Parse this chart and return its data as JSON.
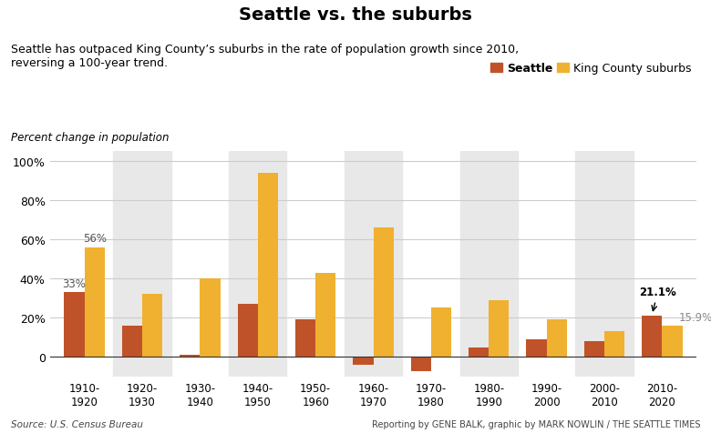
{
  "title": "Seattle vs. the suburbs",
  "subtitle": "Seattle has outpaced King County’s suburbs in the rate of population growth since 2010,\nreversing a 100-year trend.",
  "ylabel": "Percent change in population",
  "source": "Source: U.S. Census Bureau",
  "credit": "Reporting by GENE BALK, graphic by MARK NOWLIN / THE SEATTLE TIMES",
  "categories": [
    "1910-\n1920",
    "1920-\n1930",
    "1930-\n1940",
    "1940-\n1950",
    "1950-\n1960",
    "1960-\n1970",
    "1970-\n1980",
    "1980-\n1990",
    "1990-\n2000",
    "2000-\n2010",
    "2010-\n2020"
  ],
  "seattle": [
    33,
    16,
    1,
    27,
    19,
    -4,
    -7,
    5,
    9,
    8,
    21.1
  ],
  "suburbs": [
    56,
    32,
    40,
    94,
    43,
    66,
    25,
    29,
    19,
    13,
    15.9
  ],
  "seattle_color": "#c0522a",
  "suburbs_color": "#f0b030",
  "bg_stripe_color": "#e8e8e8",
  "ylim": [
    -10,
    105
  ],
  "yticks": [
    0,
    20,
    40,
    60,
    80,
    100
  ],
  "stripe_indices": [
    0,
    1,
    2,
    3,
    4,
    5,
    6,
    7,
    8,
    9,
    10
  ],
  "white_indices": [
    0,
    2,
    4,
    6,
    8,
    10
  ],
  "grey_indices": [
    1,
    3,
    5,
    7,
    9
  ]
}
